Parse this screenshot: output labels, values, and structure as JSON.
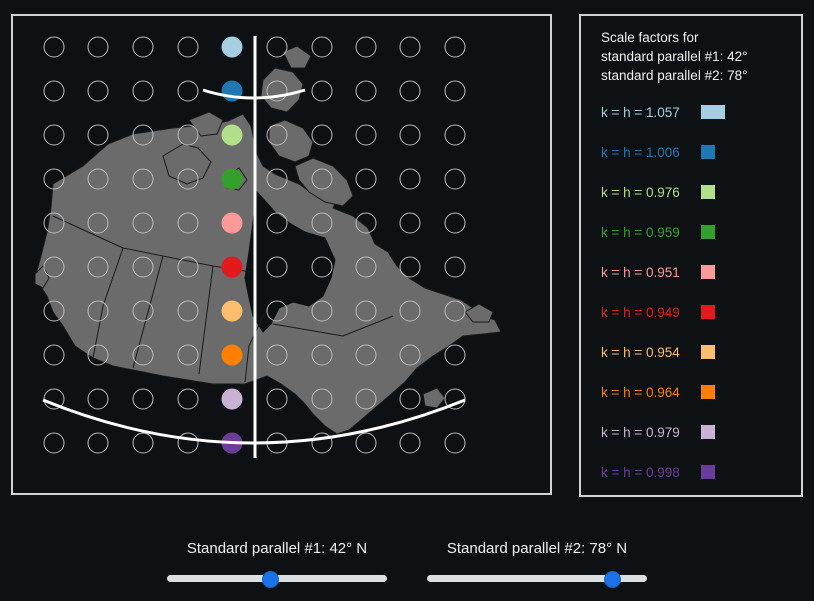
{
  "legend": {
    "title_line1": "Scale factors for",
    "title_line2": "standard parallel #1: 42°",
    "title_line3": "standard parallel #2: 78°",
    "items": [
      {
        "label": "k = h = 1.057",
        "color": "#a6cee3"
      },
      {
        "label": "k = h = 1.006",
        "color": "#1f78b4"
      },
      {
        "label": "k = h = 0.976",
        "color": "#b2df8a"
      },
      {
        "label": "k = h = 0.959",
        "color": "#33a02c"
      },
      {
        "label": "k = h = 0.951",
        "color": "#fb9a99"
      },
      {
        "label": "k = h = 0.949",
        "color": "#e31a1c"
      },
      {
        "label": "k = h = 0.954",
        "color": "#fdbf6f"
      },
      {
        "label": "k = h = 0.964",
        "color": "#ff7f00"
      },
      {
        "label": "k = h = 0.979",
        "color": "#cab2d6"
      },
      {
        "label": "k = h = 0.998",
        "color": "#6a3d9a"
      }
    ]
  },
  "sliders": {
    "parallel1": {
      "label": "Standard parallel #1: 42° N",
      "value": 42,
      "min": 0,
      "max": 90
    },
    "parallel2": {
      "label": "Standard parallel #2: 78° N",
      "value": 78,
      "min": 0,
      "max": 90
    }
  }
}
